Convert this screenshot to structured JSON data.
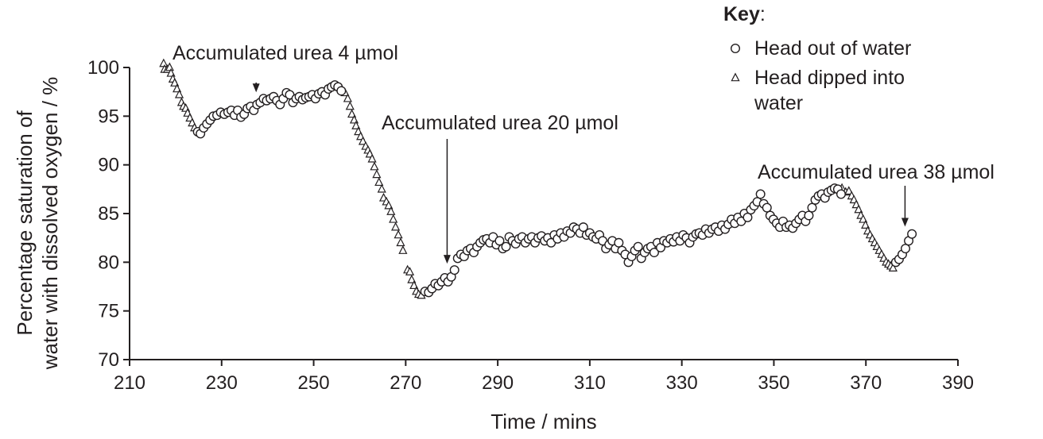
{
  "chart_data": {
    "type": "scatter",
    "xlabel": "Time / mins",
    "ylabel_lines": [
      "Percentage saturation of",
      "water with dissolved oxygen / %"
    ],
    "xlim": [
      210,
      390
    ],
    "ylim": [
      70,
      100
    ],
    "xticks": [
      210,
      230,
      250,
      270,
      290,
      310,
      330,
      350,
      370,
      390
    ],
    "yticks": [
      70,
      75,
      80,
      85,
      90,
      95,
      100
    ],
    "grid": false,
    "legend": {
      "title": "Key",
      "title_suffix": ":",
      "placement": "top-right",
      "entries": [
        {
          "series": "head_out",
          "lines": [
            "Head out of water"
          ]
        },
        {
          "series": "head_dipped",
          "lines": [
            "Head dipped into",
            "water"
          ]
        }
      ]
    },
    "annotations": [
      {
        "text": "Accumulated urea 4 µmol",
        "x": 237.5,
        "y": 96.8
      },
      {
        "text": "Accumulated urea 20 µmol",
        "x": 279,
        "y": 79.2
      },
      {
        "text": "Accumulated urea 38 µmol",
        "x": 378.5,
        "y": 83.0
      }
    ],
    "series": [
      {
        "id": "head_dipped",
        "marker": "triangle",
        "points": [
          [
            217.4,
            100.4
          ],
          [
            217.6,
            99.8
          ],
          [
            218.2,
            99.8
          ],
          [
            218.7,
            100.0
          ],
          [
            219.0,
            99.4
          ],
          [
            219.4,
            98.8
          ],
          [
            219.8,
            98.4
          ],
          [
            220.3,
            97.8
          ],
          [
            220.8,
            97.2
          ],
          [
            221.3,
            96.4
          ],
          [
            221.7,
            96.0
          ],
          [
            222.2,
            95.8
          ],
          [
            222.6,
            95.3
          ],
          [
            223.1,
            94.8
          ],
          [
            223.6,
            94.3
          ],
          [
            224.1,
            93.8
          ],
          [
            256.0,
            97.8
          ],
          [
            256.8,
            97.4
          ],
          [
            257.4,
            96.8
          ],
          [
            257.9,
            96.0
          ],
          [
            258.3,
            95.2
          ],
          [
            258.8,
            94.6
          ],
          [
            259.2,
            94.0
          ],
          [
            259.7,
            93.4
          ],
          [
            260.2,
            92.9
          ],
          [
            260.7,
            92.4
          ],
          [
            261.3,
            91.9
          ],
          [
            261.8,
            91.5
          ],
          [
            262.2,
            91.1
          ],
          [
            262.7,
            90.6
          ],
          [
            263.2,
            89.8
          ],
          [
            263.7,
            89.0
          ],
          [
            264.2,
            88.2
          ],
          [
            264.8,
            87.5
          ],
          [
            265.2,
            86.6
          ],
          [
            265.8,
            86.2
          ],
          [
            266.3,
            85.8
          ],
          [
            266.8,
            85.2
          ],
          [
            267.3,
            84.4
          ],
          [
            267.8,
            83.6
          ],
          [
            268.4,
            82.8
          ],
          [
            268.9,
            82.0
          ],
          [
            269.4,
            81.2
          ],
          [
            270.4,
            79.2
          ],
          [
            270.9,
            79.0
          ],
          [
            271.3,
            78.2
          ],
          [
            271.8,
            77.6
          ],
          [
            272.3,
            77.0
          ],
          [
            272.8,
            76.7
          ],
          [
            273.4,
            76.6
          ],
          [
            364.8,
            87.6
          ],
          [
            365.6,
            87.2
          ],
          [
            366.3,
            87.3
          ],
          [
            366.9,
            86.8
          ],
          [
            367.4,
            86.4
          ],
          [
            367.9,
            85.9
          ],
          [
            368.4,
            85.4
          ],
          [
            368.9,
            84.8
          ],
          [
            369.4,
            84.4
          ],
          [
            369.9,
            83.8
          ],
          [
            370.4,
            83.2
          ],
          [
            370.9,
            82.8
          ],
          [
            371.4,
            82.4
          ],
          [
            371.9,
            82.0
          ],
          [
            372.4,
            81.6
          ],
          [
            372.9,
            81.2
          ],
          [
            373.4,
            80.8
          ],
          [
            373.9,
            80.4
          ],
          [
            374.4,
            80.0
          ],
          [
            374.9,
            79.8
          ],
          [
            375.4,
            79.6
          ],
          [
            375.9,
            79.4
          ]
        ]
      },
      {
        "id": "head_out",
        "marker": "circle",
        "points": [
          [
            224.8,
            93.4
          ],
          [
            225.4,
            93.2
          ],
          [
            226.1,
            93.8
          ],
          [
            226.8,
            94.2
          ],
          [
            227.5,
            94.6
          ],
          [
            228.2,
            95.0
          ],
          [
            229.0,
            95.1
          ],
          [
            229.8,
            95.4
          ],
          [
            230.6,
            95.2
          ],
          [
            231.4,
            95.4
          ],
          [
            232.1,
            95.6
          ],
          [
            232.8,
            95.1
          ],
          [
            233.5,
            95.6
          ],
          [
            234.2,
            94.9
          ],
          [
            234.9,
            95.2
          ],
          [
            235.6,
            95.8
          ],
          [
            236.3,
            96.0
          ],
          [
            237.0,
            95.6
          ],
          [
            237.7,
            96.2
          ],
          [
            238.4,
            96.4
          ],
          [
            239.1,
            96.8
          ],
          [
            239.8,
            96.6
          ],
          [
            240.6,
            96.8
          ],
          [
            241.3,
            97.0
          ],
          [
            242.0,
            96.6
          ],
          [
            242.7,
            96.2
          ],
          [
            243.4,
            96.8
          ],
          [
            244.1,
            97.4
          ],
          [
            244.8,
            97.2
          ],
          [
            245.5,
            96.4
          ],
          [
            246.2,
            96.8
          ],
          [
            246.9,
            97.0
          ],
          [
            247.6,
            96.7
          ],
          [
            248.3,
            96.9
          ],
          [
            249.0,
            97.0
          ],
          [
            249.7,
            97.2
          ],
          [
            250.4,
            96.8
          ],
          [
            251.1,
            97.3
          ],
          [
            251.8,
            97.5
          ],
          [
            252.5,
            97.2
          ],
          [
            253.2,
            97.8
          ],
          [
            253.9,
            98.0
          ],
          [
            254.6,
            98.2
          ],
          [
            255.3,
            98.0
          ],
          [
            256.0,
            97.6
          ],
          [
            274.2,
            77.0
          ],
          [
            275.0,
            76.9
          ],
          [
            275.7,
            77.3
          ],
          [
            276.4,
            77.8
          ],
          [
            277.1,
            77.6
          ],
          [
            277.8,
            78.0
          ],
          [
            278.5,
            78.4
          ],
          [
            279.2,
            78.0
          ],
          [
            279.9,
            78.5
          ],
          [
            280.6,
            79.2
          ],
          [
            281.3,
            80.4
          ],
          [
            282.0,
            80.8
          ],
          [
            282.7,
            80.6
          ],
          [
            283.4,
            81.2
          ],
          [
            284.1,
            81.4
          ],
          [
            284.8,
            81.0
          ],
          [
            285.5,
            81.6
          ],
          [
            286.2,
            82.0
          ],
          [
            286.9,
            82.3
          ],
          [
            287.6,
            82.4
          ],
          [
            288.3,
            82.0
          ],
          [
            289.0,
            82.6
          ],
          [
            289.7,
            81.8
          ],
          [
            290.4,
            82.2
          ],
          [
            291.1,
            81.4
          ],
          [
            291.8,
            81.6
          ],
          [
            292.5,
            82.6
          ],
          [
            293.2,
            82.2
          ],
          [
            293.9,
            81.9
          ],
          [
            294.6,
            82.4
          ],
          [
            295.3,
            82.6
          ],
          [
            296.0,
            82.0
          ],
          [
            296.7,
            82.4
          ],
          [
            297.4,
            82.6
          ],
          [
            298.1,
            82.0
          ],
          [
            298.8,
            82.5
          ],
          [
            299.5,
            82.7
          ],
          [
            300.2,
            82.2
          ],
          [
            300.9,
            82.5
          ],
          [
            301.6,
            82.0
          ],
          [
            302.3,
            82.8
          ],
          [
            303.0,
            82.4
          ],
          [
            303.7,
            83.0
          ],
          [
            304.4,
            82.6
          ],
          [
            305.1,
            83.2
          ],
          [
            305.8,
            83.0
          ],
          [
            306.5,
            83.6
          ],
          [
            307.2,
            83.4
          ],
          [
            307.9,
            83.0
          ],
          [
            308.6,
            83.6
          ],
          [
            309.3,
            82.8
          ],
          [
            310.0,
            83.0
          ],
          [
            310.7,
            82.6
          ],
          [
            311.4,
            82.4
          ],
          [
            312.1,
            82.8
          ],
          [
            312.8,
            82.2
          ],
          [
            313.5,
            81.4
          ],
          [
            314.2,
            81.8
          ],
          [
            314.9,
            82.2
          ],
          [
            315.6,
            81.4
          ],
          [
            316.3,
            82.0
          ],
          [
            317.0,
            81.2
          ],
          [
            317.7,
            80.8
          ],
          [
            318.4,
            80.0
          ],
          [
            319.1,
            80.6
          ],
          [
            319.8,
            81.2
          ],
          [
            320.5,
            81.6
          ],
          [
            321.2,
            80.4
          ],
          [
            321.9,
            81.0
          ],
          [
            322.6,
            81.4
          ],
          [
            323.3,
            81.6
          ],
          [
            324.0,
            81.0
          ],
          [
            324.7,
            82.0
          ],
          [
            325.4,
            81.5
          ],
          [
            326.1,
            82.2
          ],
          [
            326.8,
            82.0
          ],
          [
            327.5,
            82.4
          ],
          [
            328.2,
            82.1
          ],
          [
            328.9,
            82.6
          ],
          [
            329.6,
            82.2
          ],
          [
            330.3,
            82.8
          ],
          [
            331.0,
            82.5
          ],
          [
            331.7,
            82.0
          ],
          [
            332.4,
            82.6
          ],
          [
            333.1,
            82.9
          ],
          [
            333.8,
            83.0
          ],
          [
            334.5,
            82.8
          ],
          [
            335.2,
            83.4
          ],
          [
            335.9,
            83.0
          ],
          [
            336.6,
            83.4
          ],
          [
            337.3,
            83.6
          ],
          [
            338.0,
            83.2
          ],
          [
            338.7,
            83.8
          ],
          [
            339.4,
            83.4
          ],
          [
            340.1,
            83.9
          ],
          [
            340.8,
            84.4
          ],
          [
            341.5,
            84.0
          ],
          [
            342.2,
            84.6
          ],
          [
            342.9,
            84.2
          ],
          [
            343.6,
            85.0
          ],
          [
            344.3,
            84.6
          ],
          [
            345.0,
            85.4
          ],
          [
            345.7,
            85.8
          ],
          [
            346.4,
            86.2
          ],
          [
            347.1,
            87.0
          ],
          [
            347.8,
            86.0
          ],
          [
            348.5,
            85.6
          ],
          [
            349.2,
            84.8
          ],
          [
            349.9,
            84.4
          ],
          [
            350.6,
            84.0
          ],
          [
            351.3,
            83.6
          ],
          [
            352.0,
            84.2
          ],
          [
            352.7,
            83.6
          ],
          [
            353.4,
            83.8
          ],
          [
            354.1,
            83.5
          ],
          [
            354.8,
            84.0
          ],
          [
            355.5,
            84.4
          ],
          [
            356.2,
            84.8
          ],
          [
            356.9,
            84.2
          ],
          [
            357.6,
            84.8
          ],
          [
            358.3,
            85.6
          ],
          [
            359.0,
            86.4
          ],
          [
            359.7,
            86.8
          ],
          [
            360.4,
            87.0
          ],
          [
            361.1,
            86.6
          ],
          [
            361.8,
            87.2
          ],
          [
            362.5,
            87.4
          ],
          [
            363.2,
            87.6
          ],
          [
            363.9,
            87.5
          ],
          [
            364.6,
            87.0
          ],
          [
            376.5,
            80.0
          ],
          [
            377.2,
            80.3
          ],
          [
            377.9,
            80.8
          ],
          [
            378.6,
            81.4
          ],
          [
            379.3,
            82.2
          ],
          [
            380.0,
            82.9
          ]
        ]
      }
    ]
  }
}
